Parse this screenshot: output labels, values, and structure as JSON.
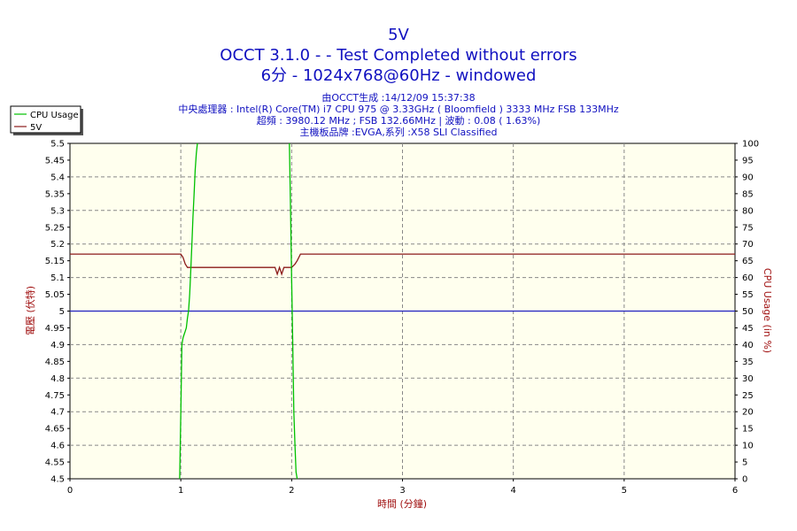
{
  "header": {
    "title": "5V",
    "line2": "OCCT 3.1.0 -  - Test Completed without errors",
    "line3": "6分 - 1024x768@60Hz - windowed",
    "info": [
      "由OCCT生成 :14/12/09 15:37:38",
      "中央處理器 : Intel(R) Core(TM) i7 CPU 975 @ 3.33GHz ( Bloomfield ) 3333 MHz FSB 133MHz",
      "超頻 : 3980.12 MHz ; FSB 132.66MHz | 波動 : 0.08 ( 1.63%)",
      "主機板品牌 :EVGA,系列 :X58 SLI Classified"
    ]
  },
  "colors": {
    "plot_bg": "#ffffee",
    "grid": "#888888",
    "cpu": "#00c000",
    "volt": "#8b1a1a",
    "ref": "#2020c0",
    "title": "#1010c0",
    "axis_label": "#a01010"
  },
  "chart_data": {
    "type": "line",
    "xlabel": "時間 (分鐘)",
    "ylabel_left": "電壓 (伏特)",
    "ylabel_right": "CPU Usage (in %)",
    "xlim": [
      0,
      6
    ],
    "ylim_left": [
      4.5,
      5.5
    ],
    "ylim_right": [
      0,
      100
    ],
    "x_ticks": [
      "0",
      "1",
      "2",
      "3",
      "4",
      "5",
      "6"
    ],
    "y_left_ticks": [
      "4.5",
      "4.55",
      "4.6",
      "4.65",
      "4.7",
      "4.75",
      "4.8",
      "4.85",
      "4.9",
      "4.95",
      "5",
      "5.05",
      "5.1",
      "5.15",
      "5.2",
      "5.25",
      "5.3",
      "5.35",
      "5.4",
      "5.45",
      "5.5"
    ],
    "y_right_ticks": [
      "0",
      "5",
      "10",
      "15",
      "20",
      "25",
      "30",
      "35",
      "40",
      "45",
      "50",
      "55",
      "60",
      "65",
      "70",
      "75",
      "80",
      "85",
      "90",
      "95",
      "100"
    ],
    "legend": {
      "placement": "top-left",
      "entries": [
        "CPU Usage",
        "5V"
      ]
    },
    "reference_line": {
      "axis": "left",
      "y": 5.0
    },
    "series": [
      {
        "name": "5V",
        "axis": "left",
        "x": [
          0,
          1.0,
          1.02,
          1.04,
          1.06,
          1.1,
          1.85,
          1.87,
          1.89,
          1.91,
          1.93,
          1.96,
          2.0,
          2.03,
          2.05,
          2.08,
          2.1,
          6
        ],
        "y": [
          5.17,
          5.17,
          5.16,
          5.14,
          5.13,
          5.13,
          5.13,
          5.11,
          5.13,
          5.11,
          5.13,
          5.13,
          5.13,
          5.14,
          5.15,
          5.17,
          5.17,
          5.17
        ]
      },
      {
        "name": "CPU Usage",
        "axis": "right",
        "x": [
          0.99,
          1.0,
          1.01,
          1.02,
          1.03,
          1.04,
          1.05,
          1.06,
          1.07,
          1.08,
          1.09,
          1.1,
          1.11,
          1.12,
          1.13,
          1.14,
          1.15
        ],
        "y": [
          0,
          20,
          40,
          42,
          43,
          44,
          45,
          48,
          50,
          55,
          62,
          70,
          78,
          85,
          92,
          97,
          100
        ]
      },
      {
        "name": "CPU Usage",
        "axis": "right",
        "x": [
          1.98,
          1.99,
          2.0,
          2.01,
          2.02,
          2.03,
          2.04,
          2.05
        ],
        "y": [
          100,
          80,
          60,
          40,
          20,
          10,
          2,
          0
        ]
      }
    ]
  }
}
